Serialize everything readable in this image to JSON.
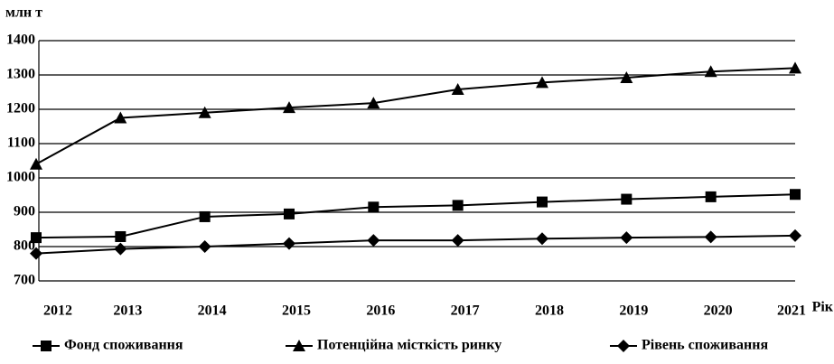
{
  "chart_data": {
    "type": "line",
    "y_label": "млн т",
    "x_label": "Рік",
    "categories": [
      "2012",
      "2013",
      "2014",
      "2015",
      "2016",
      "2017",
      "2018",
      "2019",
      "2020",
      "2021"
    ],
    "series": [
      {
        "name": "Фонд споживання",
        "color": "#000000",
        "marker": "square",
        "values": [
          826,
          829,
          887,
          895,
          915,
          920,
          930,
          938,
          945,
          952
        ]
      },
      {
        "name": "Потенційна місткість ринку",
        "color": "#000000",
        "marker": "triangle",
        "values": [
          1040,
          1175,
          1190,
          1205,
          1218,
          1258,
          1278,
          1292,
          1310,
          1320
        ]
      },
      {
        "name": "Рівень споживання",
        "color": "#000000",
        "marker": "diamond",
        "values": [
          780,
          793,
          800,
          809,
          818,
          818,
          823,
          826,
          828,
          832
        ]
      }
    ],
    "ylim": [
      700,
      1400
    ],
    "yticks": [
      700,
      800,
      900,
      1000,
      1100,
      1200,
      1300,
      1400
    ],
    "grid": true,
    "legend": "bottom"
  }
}
